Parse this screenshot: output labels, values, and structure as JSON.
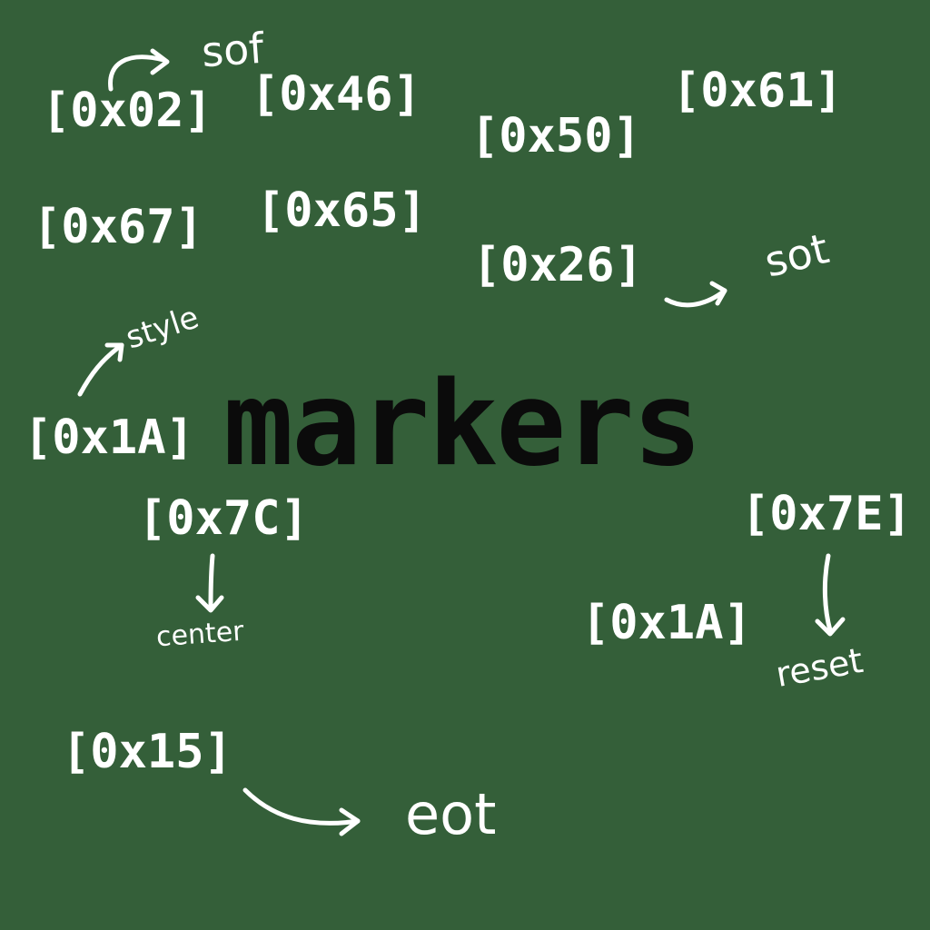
{
  "title": "markers",
  "colors": {
    "background": "#345f39",
    "text": "#ffffff",
    "title": "#0b0b0b"
  },
  "codes": [
    "[0x02]",
    "[0x46]",
    "[0x50]",
    "[0x61]",
    "[0x67]",
    "[0x65]",
    "[0x26]",
    "[0x1A]",
    "[0x7C]",
    "[0x7E]",
    "[0x1A]",
    "[0x15]"
  ],
  "annotations": [
    "sof",
    "sot",
    "style",
    "center",
    "reset",
    "eot"
  ]
}
